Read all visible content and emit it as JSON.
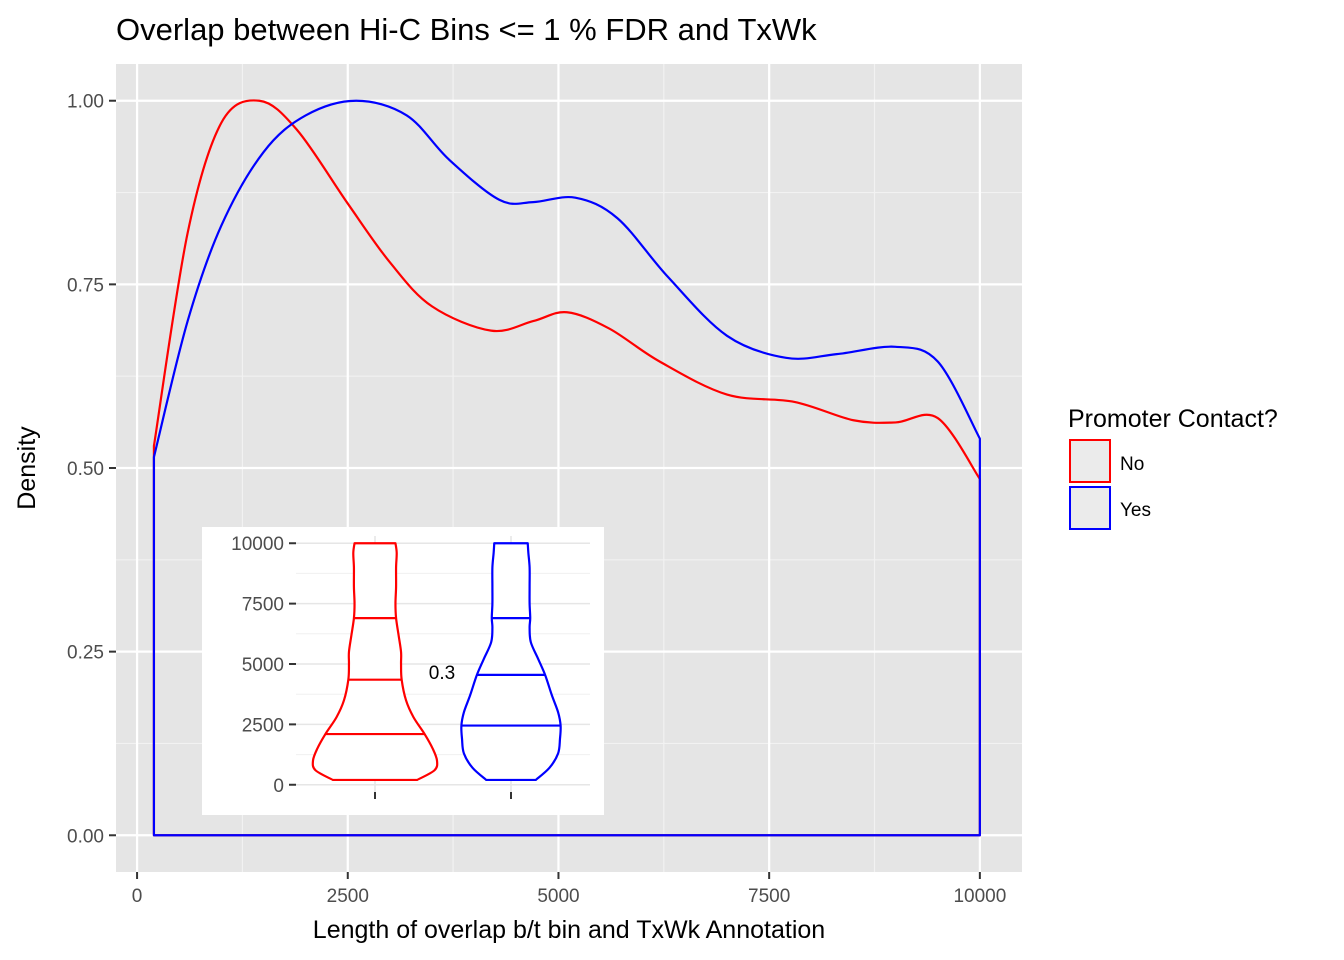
{
  "chart_data": [
    {
      "type": "line",
      "subtype": "density",
      "title": "Overlap between Hi-C Bins <= 1 % FDR and TxWk",
      "xlabel": "Length of overlap b/t bin and TxWk Annotation",
      "ylabel": "Density",
      "xlim": [
        -250,
        10500
      ],
      "ylim": [
        -0.05,
        1.05
      ],
      "xticks": [
        0,
        2500,
        5000,
        7500,
        10000
      ],
      "xtick_labels": [
        "0",
        "2500",
        "5000",
        "7500",
        "10000"
      ],
      "yticks": [
        0.0,
        0.25,
        0.5,
        0.75,
        1.0
      ],
      "ytick_labels": [
        "0.00",
        "0.25",
        "0.50",
        "0.75",
        "1.00"
      ],
      "grid": true,
      "legend": {
        "title": "Promoter Contact?",
        "placement": "right",
        "entries": [
          {
            "label": "No",
            "color": "#ff0000"
          },
          {
            "label": "Yes",
            "color": "#0000ff"
          }
        ]
      },
      "series": [
        {
          "name": "No",
          "color": "#ff0000",
          "x": [
            200,
            600,
            1000,
            1450,
            1900,
            2500,
            3000,
            3500,
            4200,
            4700,
            5100,
            5600,
            6200,
            7000,
            7800,
            8500,
            9000,
            9500,
            10000
          ],
          "y": [
            0.53,
            0.82,
            0.97,
            1.0,
            0.96,
            0.86,
            0.78,
            0.72,
            0.687,
            0.7,
            0.712,
            0.69,
            0.645,
            0.6,
            0.59,
            0.565,
            0.562,
            0.568,
            0.485
          ]
        },
        {
          "name": "Yes",
          "color": "#0000ff",
          "x": [
            200,
            600,
            1000,
            1500,
            2000,
            2600,
            3200,
            3700,
            4300,
            4700,
            5200,
            5700,
            6300,
            7000,
            7700,
            8300,
            9000,
            9500,
            10000
          ],
          "y": [
            0.515,
            0.7,
            0.83,
            0.93,
            0.98,
            1.0,
            0.98,
            0.92,
            0.865,
            0.862,
            0.868,
            0.84,
            0.76,
            0.68,
            0.65,
            0.655,
            0.665,
            0.645,
            0.54
          ]
        }
      ]
    },
    {
      "type": "violin",
      "ylim": [
        -300,
        10300
      ],
      "yticks": [
        0,
        2500,
        5000,
        7500,
        10000
      ],
      "ytick_labels": [
        "0",
        "2500",
        "5000",
        "7500",
        "10000"
      ],
      "xtick_labels": [
        "",
        ""
      ],
      "annotation": "0.3",
      "grid": true,
      "series": [
        {
          "name": "No",
          "color": "#ff0000",
          "quantiles": [
            2100,
            4350,
            6900
          ],
          "y": [
            200,
            600,
            1000,
            1500,
            2100,
            2800,
            3500,
            4350,
            5000,
            5500,
            6200,
            6900,
            7500,
            8200,
            9000,
            9600,
            10000
          ],
          "width": [
            0.68,
            0.96,
            1.0,
            0.93,
            0.8,
            0.62,
            0.5,
            0.43,
            0.42,
            0.42,
            0.38,
            0.34,
            0.33,
            0.34,
            0.34,
            0.35,
            0.33
          ]
        },
        {
          "name": "Yes",
          "color": "#0000ff",
          "quantiles": [
            2450,
            4550,
            6900
          ],
          "y": [
            200,
            700,
            1300,
            1900,
            2450,
            3000,
            3700,
            4550,
            5200,
            5900,
            6500,
            6900,
            7500,
            8200,
            9000,
            9600,
            10000
          ],
          "width": [
            0.4,
            0.62,
            0.76,
            0.79,
            0.8,
            0.76,
            0.66,
            0.55,
            0.44,
            0.32,
            0.3,
            0.31,
            0.3,
            0.3,
            0.3,
            0.28,
            0.27
          ]
        }
      ]
    }
  ]
}
